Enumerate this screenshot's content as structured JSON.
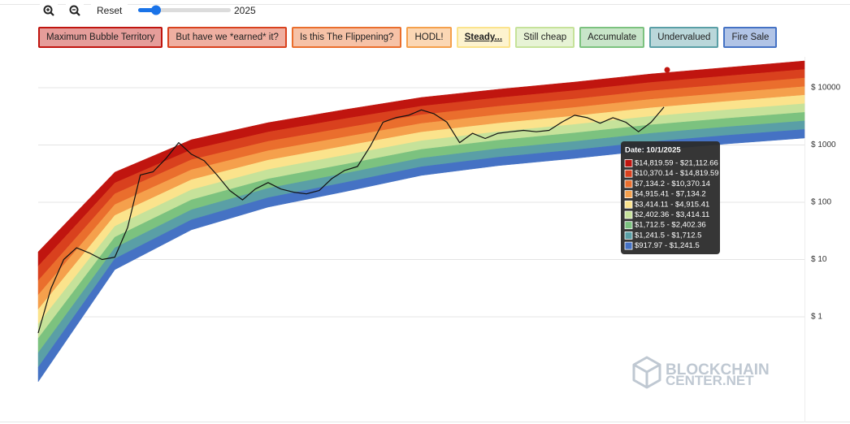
{
  "toolbar": {
    "reset": "Reset",
    "year": 2025
  },
  "watermark": {
    "line1": "BLOCKCHAIN",
    "line2": "CENTER.NET"
  },
  "chart_data": {
    "type": "rainbow",
    "log_scale": true,
    "grid": true,
    "ylim": [
      0.0143,
      34600
    ],
    "yticks": [
      {
        "value": 1,
        "label": "$ 1"
      },
      {
        "value": 10,
        "label": "$ 10"
      },
      {
        "value": 100,
        "label": "$ 100"
      },
      {
        "value": 1000,
        "label": "$ 1000"
      },
      {
        "value": 10000,
        "label": "$ 10000"
      }
    ],
    "series": [
      {
        "name": "Maximum Bubble Territory",
        "color": "#c0150f",
        "high": [
          13.6,
          335,
          1236,
          2455,
          4140,
          6761,
          9376,
          12560,
          17420,
          22650,
          29380
        ],
        "low": [
          7.64,
          217,
          826,
          1683,
          2871,
          4764,
          6668,
          8933,
          12390,
          16110,
          20840
        ]
      },
      {
        "name": "But have we *earned* it?",
        "color": "#d9411e",
        "high": [
          7.64,
          217,
          826,
          1683,
          2871,
          4764,
          6668,
          8933,
          12390,
          16110,
          20840
        ],
        "low": [
          4.27,
          140,
          552,
          1156,
          1986,
          3365,
          4732,
          6353,
          8810,
          11430,
          14760
        ]
      },
      {
        "name": "Is this The Flippening?",
        "color": "#ea6e2d",
        "high": [
          4.27,
          140,
          552,
          1156,
          1986,
          3365,
          4732,
          6353,
          8810,
          11430,
          14760
        ],
        "low": [
          2.39,
          90.8,
          369,
          793,
          1377,
          2371,
          3365,
          4519,
          6266,
          8128,
          10450
        ]
      },
      {
        "name": "HODL!",
        "color": "#f5a04c",
        "high": [
          2.39,
          90.8,
          369,
          793,
          1377,
          2371,
          3365,
          4519,
          6266,
          8128,
          10450
        ],
        "low": [
          1.34,
          58.7,
          247,
          543,
          955,
          1675,
          2393,
          3214,
          4457,
          5781,
          7413
        ]
      },
      {
        "name": "Steady...",
        "color": "#fbe38c",
        "high": [
          1.34,
          58.7,
          247,
          543,
          955,
          1675,
          2393,
          3214,
          4457,
          5781,
          7413
        ],
        "low": [
          0.748,
          37.9,
          165,
          372,
          662,
          1183,
          1702,
          2280,
          3162,
          4111,
          5248
        ]
      },
      {
        "name": "Still cheap",
        "color": "#c6e29a",
        "high": [
          0.748,
          37.9,
          165,
          372,
          662,
          1183,
          1702,
          2280,
          3162,
          4111,
          5248
        ],
        "low": [
          0.419,
          24.5,
          110,
          255,
          458,
          836,
          1208,
          1622,
          2249,
          2924,
          3715
        ]
      },
      {
        "name": "Accumulate",
        "color": "#7cc27f",
        "high": [
          0.419,
          24.5,
          110,
          255,
          458,
          836,
          1208,
          1622,
          2249,
          2924,
          3715
        ],
        "low": [
          0.234,
          15.9,
          73.8,
          175,
          318,
          589,
          859,
          1153,
          1600,
          2075,
          2630
        ]
      },
      {
        "name": "Undervalued",
        "color": "#5a9fa6",
        "high": [
          0.234,
          15.9,
          73.8,
          175,
          318,
          589,
          859,
          1153,
          1600,
          2075,
          2630
        ],
        "low": [
          0.131,
          10.3,
          49.3,
          120,
          220,
          416,
          611,
          820,
          1138,
          1476,
          1866
        ]
      },
      {
        "name": "Fire Sale",
        "color": "#4572c4",
        "high": [
          0.131,
          10.3,
          49.3,
          120,
          220,
          416,
          611,
          820,
          1138,
          1476,
          1866
        ],
        "low": [
          0.0733,
          6.65,
          33.0,
          82.2,
          153,
          294,
          435,
          583,
          809,
          1050,
          1321
        ]
      }
    ],
    "price": {
      "color": "#111111",
      "values": [
        0.52,
        3.1,
        10,
        16,
        13,
        10,
        11,
        36,
        300,
        340,
        580,
        1100,
        690,
        530,
        300,
        160,
        110,
        170,
        220,
        170,
        150,
        140,
        160,
        260,
        360,
        420,
        950,
        2500,
        3000,
        3300,
        4100,
        3500,
        2500,
        1100,
        1600,
        1300,
        1600,
        1700,
        1800,
        1700,
        1800,
        2500,
        3300,
        3000,
        2400,
        3000,
        2500,
        1700,
        2500,
        4600,
        null,
        null,
        null,
        null,
        null,
        null,
        null,
        null,
        null,
        null,
        null
      ]
    },
    "tooltip": {
      "title": "Date: 10/1/2025",
      "rows": [
        "$14,819.59 - $21,112.66",
        "$10,370.14 - $14,819.59",
        "$7,134.2 - $10,370.14",
        "$4,915.41 - $7,134.2",
        "$3,414.11 - $4,915.41",
        "$2,402.36 - $3,414.11",
        "$1,712.5 - $2,402.36",
        "$1,241.5 - $1,712.5",
        "$917.97 - $1,241.5"
      ]
    }
  }
}
